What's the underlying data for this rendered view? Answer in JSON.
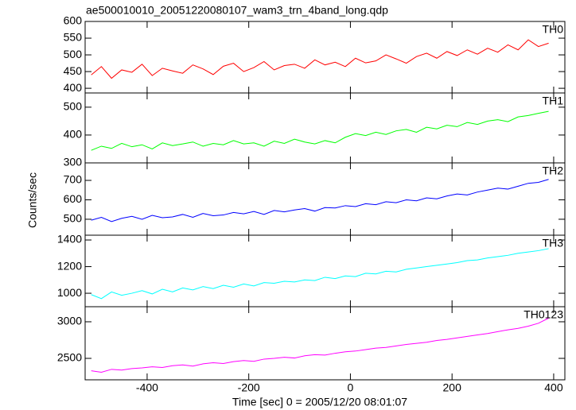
{
  "chart_data": {
    "type": "line",
    "title": "ae500010010_20051220080107_wam3_trn_4band_long.qdp",
    "xlabel": "Time [sec] 0 = 2005/12/20 08:01:07",
    "ylabel": "Counts/sec",
    "xlim": [
      -522,
      422
    ],
    "xticks": [
      -400,
      -200,
      0,
      200,
      400
    ],
    "x": [
      -510,
      -490,
      -470,
      -450,
      -430,
      -410,
      -390,
      -370,
      -350,
      -330,
      -310,
      -290,
      -270,
      -250,
      -230,
      -210,
      -190,
      -170,
      -150,
      -130,
      -110,
      -90,
      -70,
      -50,
      -30,
      -10,
      10,
      30,
      50,
      70,
      90,
      110,
      130,
      150,
      170,
      190,
      210,
      230,
      250,
      270,
      290,
      310,
      330,
      350,
      370,
      390
    ],
    "series": [
      {
        "name": "TH0",
        "color": "#ff0000",
        "ylim": [
          386,
          600
        ],
        "yticks": [
          400,
          450,
          500,
          550,
          600
        ],
        "values": [
          440,
          465,
          430,
          455,
          448,
          472,
          438,
          460,
          452,
          445,
          470,
          458,
          441,
          466,
          475,
          450,
          462,
          480,
          455,
          468,
          472,
          460,
          485,
          470,
          478,
          465,
          490,
          476,
          482,
          500,
          488,
          475,
          495,
          505,
          490,
          510,
          498,
          515,
          502,
          520,
          508,
          530,
          515,
          545,
          525,
          535
        ]
      },
      {
        "name": "TH1",
        "color": "#00ff00",
        "ylim": [
          300,
          551
        ],
        "yticks": [
          300,
          400,
          500
        ],
        "values": [
          345,
          360,
          352,
          370,
          358,
          365,
          350,
          372,
          362,
          368,
          375,
          360,
          370,
          365,
          380,
          368,
          372,
          360,
          378,
          370,
          385,
          375,
          368,
          380,
          372,
          392,
          405,
          398,
          410,
          402,
          415,
          420,
          410,
          428,
          422,
          435,
          430,
          445,
          438,
          450,
          455,
          448,
          465,
          470,
          478,
          485
        ]
      },
      {
        "name": "TH2",
        "color": "#0000ff",
        "ylim": [
          418,
          790
        ],
        "yticks": [
          500,
          600,
          700
        ],
        "values": [
          495,
          510,
          488,
          505,
          515,
          500,
          520,
          508,
          512,
          525,
          510,
          530,
          518,
          522,
          535,
          528,
          540,
          525,
          545,
          538,
          548,
          555,
          542,
          560,
          558,
          570,
          565,
          580,
          575,
          590,
          585,
          600,
          595,
          610,
          605,
          620,
          630,
          625,
          640,
          650,
          660,
          655,
          670,
          685,
          690,
          705
        ]
      },
      {
        "name": "TH3",
        "color": "#00ffff",
        "ylim": [
          899,
          1436
        ],
        "yticks": [
          1000,
          1200,
          1400
        ],
        "values": [
          990,
          960,
          1010,
          985,
          1000,
          1020,
          995,
          1030,
          1010,
          1040,
          1025,
          1050,
          1035,
          1060,
          1045,
          1070,
          1055,
          1080,
          1075,
          1090,
          1085,
          1100,
          1095,
          1120,
          1110,
          1130,
          1125,
          1150,
          1145,
          1165,
          1160,
          1180,
          1190,
          1200,
          1210,
          1220,
          1230,
          1245,
          1250,
          1265,
          1275,
          1285,
          1300,
          1310,
          1320,
          1335
        ]
      },
      {
        "name": "TH0123",
        "color": "#ff00ff",
        "ylim": [
          2207,
          3206
        ],
        "yticks": [
          2500,
          3000
        ],
        "values": [
          2330,
          2310,
          2350,
          2340,
          2360,
          2370,
          2385,
          2375,
          2400,
          2410,
          2395,
          2425,
          2440,
          2430,
          2455,
          2470,
          2460,
          2490,
          2500,
          2515,
          2505,
          2535,
          2550,
          2545,
          2570,
          2590,
          2600,
          2620,
          2640,
          2650,
          2670,
          2690,
          2705,
          2720,
          2745,
          2760,
          2780,
          2800,
          2820,
          2840,
          2865,
          2890,
          2910,
          2940,
          2980,
          3050
        ]
      }
    ]
  }
}
